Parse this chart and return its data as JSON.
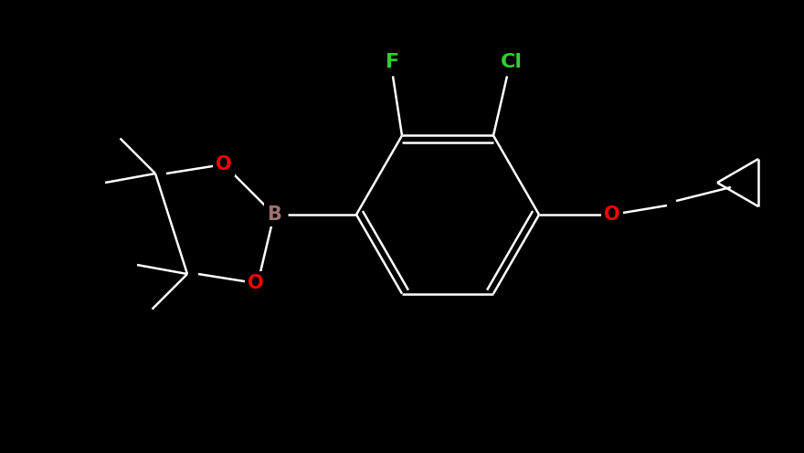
{
  "background_color": "#000000",
  "bond_color": "#ffffff",
  "atom_colors": {
    "F": "#33cc33",
    "Cl": "#33cc33",
    "O": "#ff0000",
    "B": "#a07070",
    "C": "#ffffff"
  },
  "bond_lw": 1.8,
  "fig_width": 8.8,
  "fig_height": 4.96,
  "dpi": 100
}
